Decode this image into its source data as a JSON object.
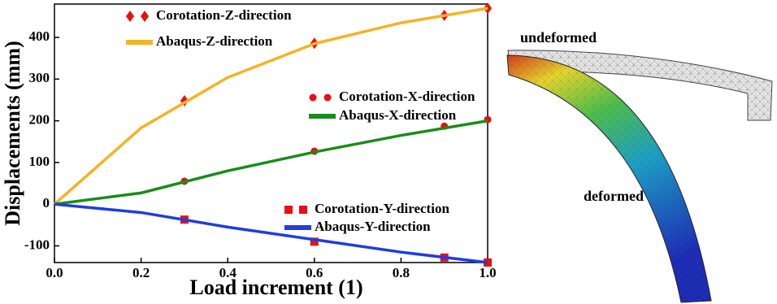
{
  "chart_data": {
    "type": "line",
    "xlabel": "Load increment (1)",
    "ylabel": "Displacements (mm)",
    "xlim": [
      0,
      1
    ],
    "ylim": [
      -140,
      480
    ],
    "xticks": [
      {
        "value": 0,
        "label": "0.0"
      },
      0.2,
      0.4,
      0.6,
      0.8,
      {
        "value": 1,
        "label": "1.0"
      }
    ],
    "yticks": [
      -100,
      0,
      100,
      200,
      300,
      400
    ],
    "series": [
      {
        "name": "Corotation-Z-direction",
        "color": "#e81010",
        "marker": "diamond",
        "x": [
          0.3,
          0.6,
          0.9,
          1.0
        ],
        "values": [
          248,
          386,
          453,
          470
        ]
      },
      {
        "name": "Abaqus-Z-direction",
        "color": "#f5b324",
        "x": [
          0,
          0.2,
          0.4,
          0.6,
          0.8,
          1.0
        ],
        "values": [
          0,
          183,
          304,
          385,
          435,
          470
        ]
      },
      {
        "name": "Corotation-X-direction",
        "color": "#e81010",
        "marker": "circle",
        "x": [
          0.3,
          0.6,
          0.9,
          1.0
        ],
        "values": [
          55,
          127,
          187,
          203
        ]
      },
      {
        "name": "Abaqus-X-direction",
        "color": "#1a8c1a",
        "x": [
          0,
          0.2,
          0.4,
          0.6,
          0.8,
          1.0
        ],
        "values": [
          0,
          27,
          80,
          125,
          165,
          200
        ]
      },
      {
        "name": "Corotation-Y-direction",
        "color": "#e81010",
        "marker": "square",
        "x": [
          0.3,
          0.6,
          0.9,
          1.0
        ],
        "values": [
          -37,
          -90,
          -128,
          -140
        ]
      },
      {
        "name": "Abaqus-Y-direction",
        "color": "#1f3de0",
        "x": [
          0,
          0.2,
          0.4,
          0.6,
          0.8,
          1.0
        ],
        "values": [
          0,
          -20,
          -55,
          -85,
          -115,
          -140
        ]
      }
    ]
  },
  "figure": {
    "undeformed_label": "undeformed",
    "deformed_label": "deformed"
  }
}
